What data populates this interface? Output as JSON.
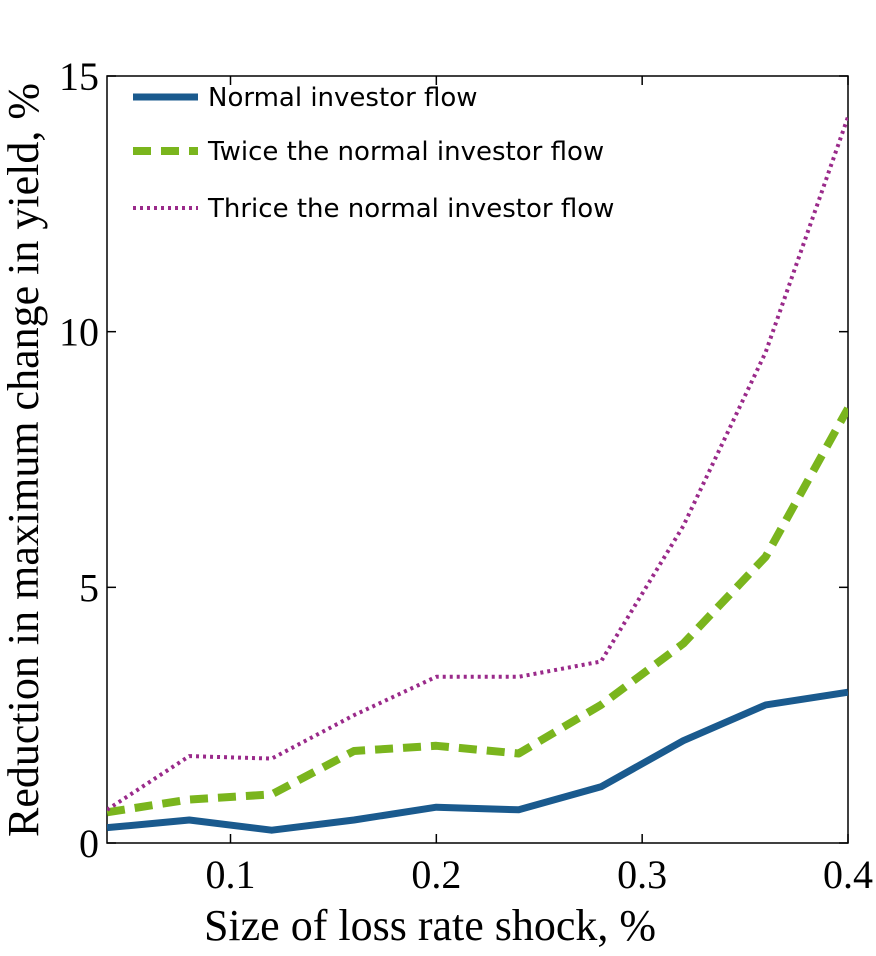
{
  "chart_data": {
    "type": "line",
    "title": "",
    "xlabel": "Size of loss rate shock, %",
    "ylabel": "Reduction in maximum change in yield, %",
    "xlim": [
      0.04,
      0.4
    ],
    "ylim": [
      0,
      15
    ],
    "xticks": [
      0.1,
      0.2,
      0.3,
      0.4
    ],
    "xtick_labels": [
      "0.1",
      "0.2",
      "0.3",
      "0.4"
    ],
    "yticks": [
      0,
      5,
      10,
      15
    ],
    "ytick_labels": [
      "0",
      "5",
      "10",
      "15"
    ],
    "grid": false,
    "legend_position": "top-left",
    "x": [
      0.04,
      0.08,
      0.12,
      0.16,
      0.2,
      0.24,
      0.28,
      0.32,
      0.36,
      0.4
    ],
    "series": [
      {
        "name": "Normal investor flow",
        "style": "solid",
        "color": "#1a5a8e",
        "values": [
          0.3,
          0.45,
          0.25,
          0.45,
          0.7,
          0.65,
          1.1,
          2.0,
          2.7,
          2.95
        ]
      },
      {
        "name": "Twice the normal investor flow",
        "style": "dashed",
        "color": "#7ab51d",
        "values": [
          0.6,
          0.85,
          0.95,
          1.8,
          1.9,
          1.75,
          2.7,
          3.9,
          5.6,
          8.5
        ]
      },
      {
        "name": "Thrice the normal investor flow",
        "style": "dotted",
        "color": "#9a2a8a",
        "values": [
          0.65,
          1.7,
          1.65,
          2.5,
          3.25,
          3.25,
          3.55,
          6.2,
          9.6,
          14.2
        ]
      }
    ]
  }
}
